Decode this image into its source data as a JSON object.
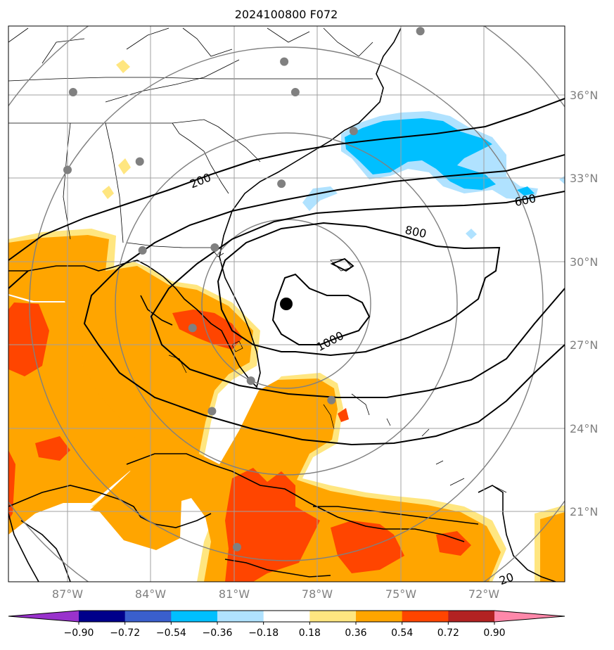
{
  "chart_data": {
    "type": "contour-map",
    "title": "2024100800 F072",
    "lon_ticks": [
      "87°W",
      "84°W",
      "81°W",
      "78°W",
      "75°W",
      "72°W"
    ],
    "lat_ticks": [
      "36°N",
      "33°N",
      "30°N",
      "27°N",
      "24°N",
      "21°N"
    ],
    "lon_range": [
      -89.3,
      -69.2
    ],
    "lat_range": [
      18.5,
      38.5
    ],
    "grid": true,
    "colorbar": {
      "orientation": "horizontal",
      "levels": [
        -0.9,
        -0.72,
        -0.54,
        -0.36,
        -0.18,
        0.18,
        0.36,
        0.54,
        0.72,
        0.9
      ],
      "labels": [
        "−0.90",
        "−0.72",
        "−0.54",
        "−0.36",
        "−0.18",
        "0.18",
        "0.36",
        "0.54",
        "0.72",
        "0.90"
      ],
      "colors": [
        "#9932cc",
        "#00008b",
        "#3a5fcd",
        "#00bfff",
        "#b0e2ff",
        "#ffffff",
        "#ffe680",
        "#ffa500",
        "#ff4500",
        "#b22222",
        "#ff88aa"
      ],
      "extend": "both"
    },
    "contour_labels": [
      "200",
      "600",
      "800",
      "1000",
      "20"
    ],
    "center": {
      "lon": -79.0,
      "lat": 28.5
    },
    "station_points": [
      {
        "lon": -86.8,
        "lat": 36.1
      },
      {
        "lon": -78.8,
        "lat": 36.1
      },
      {
        "lon": -79.2,
        "lat": 37.2
      },
      {
        "lon": -74.3,
        "lat": 38.3
      },
      {
        "lon": -76.7,
        "lat": 34.7
      },
      {
        "lon": -79.3,
        "lat": 32.8
      },
      {
        "lon": -84.4,
        "lat": 33.6
      },
      {
        "lon": -87.0,
        "lat": 33.3
      },
      {
        "lon": -81.7,
        "lat": 30.5
      },
      {
        "lon": -84.3,
        "lat": 30.4
      },
      {
        "lon": -82.5,
        "lat": 27.6
      },
      {
        "lon": -80.4,
        "lat": 25.7
      },
      {
        "lon": -81.8,
        "lat": 24.6
      },
      {
        "lon": -77.5,
        "lat": 25.0
      },
      {
        "lon": -80.9,
        "lat": 19.7
      }
    ]
  }
}
